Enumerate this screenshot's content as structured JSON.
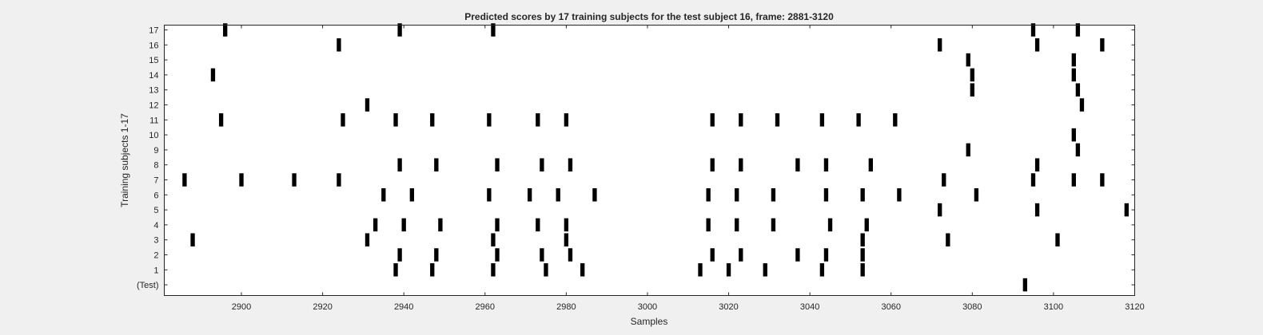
{
  "chart_data": {
    "type": "scatter",
    "title": "Predicted scores by 17 training subjects for the test subject 16, frame: 2881-3120",
    "xlabel": "Samples",
    "ylabel": "Training subjects 1-17",
    "xlim": [
      2881,
      3120
    ],
    "x_ticks": [
      2900,
      2920,
      2940,
      2960,
      2980,
      3000,
      3020,
      3040,
      3060,
      3080,
      3100,
      3120
    ],
    "y_categories": [
      "(Test)",
      "1",
      "2",
      "3",
      "4",
      "5",
      "6",
      "7",
      "8",
      "9",
      "10",
      "11",
      "12",
      "13",
      "14",
      "15",
      "16",
      "17"
    ],
    "grid": false,
    "marker_color": "#000000",
    "rows": [
      {
        "label": "(Test)",
        "x": [
          3093
        ]
      },
      {
        "label": "1",
        "x": [
          2938,
          2947,
          2962,
          2975,
          2984,
          3013,
          3020,
          3029,
          3043,
          3053
        ]
      },
      {
        "label": "2",
        "x": [
          2939,
          2948,
          2963,
          2974,
          2981,
          3016,
          3023,
          3037,
          3044,
          3053
        ]
      },
      {
        "label": "3",
        "x": [
          2888,
          2931,
          2962,
          2980,
          3053,
          3074,
          3101
        ]
      },
      {
        "label": "4",
        "x": [
          2933,
          2940,
          2949,
          2963,
          2973,
          2980,
          3015,
          3022,
          3031,
          3045,
          3054
        ]
      },
      {
        "label": "5",
        "x": [
          3072,
          3096,
          3118
        ]
      },
      {
        "label": "6",
        "x": [
          2935,
          2942,
          2961,
          2971,
          2978,
          2987,
          3015,
          3022,
          3031,
          3044,
          3053,
          3062,
          3081
        ]
      },
      {
        "label": "7",
        "x": [
          2886,
          2900,
          2913,
          2924,
          3073,
          3095,
          3105,
          3112
        ]
      },
      {
        "label": "8",
        "x": [
          2939,
          2948,
          2963,
          2974,
          2981,
          3016,
          3023,
          3037,
          3044,
          3055,
          3096
        ]
      },
      {
        "label": "9",
        "x": [
          3079,
          3106
        ]
      },
      {
        "label": "10",
        "x": [
          3105
        ]
      },
      {
        "label": "11",
        "x": [
          2895,
          2925,
          2938,
          2947,
          2961,
          2973,
          2980,
          3016,
          3023,
          3032,
          3043,
          3052,
          3061
        ]
      },
      {
        "label": "12",
        "x": [
          2931,
          3107
        ]
      },
      {
        "label": "13",
        "x": [
          3080,
          3106
        ]
      },
      {
        "label": "14",
        "x": [
          2893,
          3080,
          3105
        ]
      },
      {
        "label": "15",
        "x": [
          3079,
          3105
        ]
      },
      {
        "label": "16",
        "x": [
          2924,
          3072,
          3096,
          3112
        ]
      },
      {
        "label": "17",
        "x": [
          2896,
          2939,
          2962,
          3095,
          3106
        ]
      }
    ]
  }
}
